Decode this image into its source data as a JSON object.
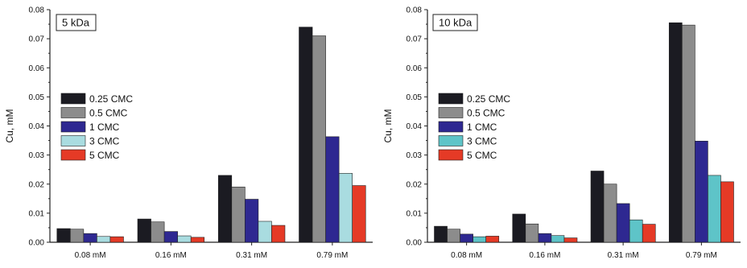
{
  "chart_data": [
    {
      "type": "bar",
      "title": "",
      "panel_label": "5 kDa",
      "xlabel": "",
      "ylabel": "Cu, mM",
      "ylim": [
        0,
        0.08
      ],
      "yticks": [
        "0.00",
        "0.01",
        "0.02",
        "0.03",
        "0.04",
        "0.05",
        "0.06",
        "0.07",
        "0.08"
      ],
      "categories": [
        "0.08 mM",
        "0.16 mM",
        "0.31 mM",
        "0.79 mM"
      ],
      "legend_position": "center-left",
      "series": [
        {
          "name": "0.25 CMC",
          "color": "#1b1b22",
          "values": [
            0.0047,
            0.008,
            0.023,
            0.074
          ]
        },
        {
          "name": "0.5 CMC",
          "color": "#8c8c8c",
          "values": [
            0.0045,
            0.007,
            0.019,
            0.071
          ]
        },
        {
          "name": "1 CMC",
          "color": "#2e2891",
          "values": [
            0.003,
            0.0037,
            0.0148,
            0.0363
          ]
        },
        {
          "name": "3 CMC",
          "color": "#a9dce0",
          "values": [
            0.002,
            0.0022,
            0.0072,
            0.0237
          ]
        },
        {
          "name": "5 CMC",
          "color": "#e53a26",
          "values": [
            0.0019,
            0.0017,
            0.0058,
            0.0195
          ]
        }
      ]
    },
    {
      "type": "bar",
      "title": "",
      "panel_label": "10 kDa",
      "xlabel": "",
      "ylabel": "Cu, mM",
      "ylim": [
        0,
        0.08
      ],
      "yticks": [
        "0.00",
        "0.01",
        "0.02",
        "0.03",
        "0.04",
        "0.05",
        "0.06",
        "0.07",
        "0.08"
      ],
      "categories": [
        "0.08 mM",
        "0.16 mM",
        "0.31 mM",
        "0.79 mM"
      ],
      "legend_position": "center-left",
      "series": [
        {
          "name": "0.25 CMC",
          "color": "#1b1b22",
          "values": [
            0.0055,
            0.0097,
            0.0245,
            0.0755
          ]
        },
        {
          "name": "0.5 CMC",
          "color": "#8c8c8c",
          "values": [
            0.0045,
            0.0063,
            0.02,
            0.0747
          ]
        },
        {
          "name": "1 CMC",
          "color": "#2e2891",
          "values": [
            0.0028,
            0.003,
            0.0133,
            0.0348
          ]
        },
        {
          "name": "3 CMC",
          "color": "#5ec4c8",
          "values": [
            0.0019,
            0.0023,
            0.0077,
            0.023
          ]
        },
        {
          "name": "5 CMC",
          "color": "#e53a26",
          "values": [
            0.0021,
            0.0015,
            0.0062,
            0.0208
          ]
        }
      ]
    }
  ]
}
